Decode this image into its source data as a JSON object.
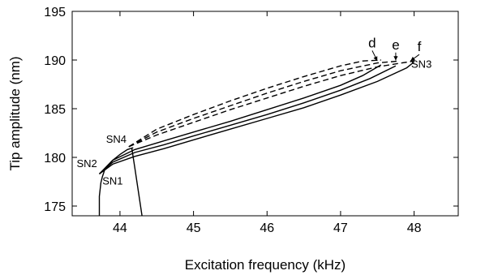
{
  "chart_data": {
    "type": "line",
    "title": "",
    "xlabel": "Excitation frequency (kHz)",
    "ylabel": "Tip amplitude (nm)",
    "xlim": [
      43.35,
      48.6
    ],
    "ylim": [
      174,
      195
    ],
    "x_ticks": [
      44,
      45,
      46,
      47,
      48
    ],
    "y_ticks": [
      175,
      180,
      185,
      190,
      195
    ],
    "grid": false,
    "legend": "none",
    "series": [
      {
        "style": "solid",
        "x": [
          43.72,
          43.9,
          44.2,
          44.6,
          45.0,
          45.5,
          46.0,
          46.5,
          47.0,
          47.5,
          47.9,
          48.0
        ],
        "y": [
          178.3,
          179.3,
          180.1,
          180.9,
          181.8,
          182.9,
          184.0,
          185.1,
          186.4,
          187.8,
          189.2,
          189.8
        ]
      },
      {
        "style": "solid",
        "x": [
          43.72,
          43.9,
          44.2,
          44.6,
          45.0,
          45.5,
          46.0,
          46.5,
          47.0,
          47.4,
          47.75
        ],
        "y": [
          178.3,
          179.5,
          180.5,
          181.3,
          182.2,
          183.3,
          184.4,
          185.6,
          186.9,
          188.1,
          189.4
        ]
      },
      {
        "style": "solid",
        "x": [
          43.72,
          43.9,
          44.2,
          44.6,
          45.0,
          45.5,
          46.0,
          46.5,
          47.0,
          47.3,
          47.55
        ],
        "y": [
          178.3,
          179.7,
          180.8,
          181.7,
          182.6,
          183.7,
          184.9,
          186.1,
          187.4,
          188.4,
          189.5
        ]
      },
      {
        "style": "dashed",
        "x": [
          44.12,
          44.5,
          45.0,
          45.5,
          46.0,
          46.5,
          47.0,
          47.5,
          48.0
        ],
        "y": [
          181.1,
          182.3,
          183.6,
          184.9,
          186.1,
          187.3,
          188.4,
          189.3,
          189.9
        ]
      },
      {
        "style": "dashed",
        "x": [
          44.12,
          44.5,
          45.0,
          45.5,
          46.0,
          46.5,
          47.0,
          47.5,
          47.8
        ],
        "y": [
          181.1,
          182.6,
          184.0,
          185.3,
          186.6,
          187.8,
          188.9,
          189.7,
          189.9
        ]
      },
      {
        "style": "dashed",
        "x": [
          44.12,
          44.5,
          45.0,
          45.5,
          46.0,
          46.5,
          47.0,
          47.3,
          47.55
        ],
        "y": [
          181.1,
          182.9,
          184.4,
          185.8,
          187.1,
          188.3,
          189.4,
          189.9,
          190.0
        ]
      },
      {
        "style": "solid",
        "x": [
          43.72,
          43.72,
          43.74,
          43.76,
          43.8,
          43.9,
          44.0,
          44.1,
          44.18
        ],
        "y": [
          174.0,
          176.0,
          177.4,
          178.0,
          178.9,
          179.7,
          180.3,
          180.8,
          181.0
        ]
      },
      {
        "style": "solid",
        "x": [
          44.16,
          44.2,
          44.24,
          44.28,
          44.3
        ],
        "y": [
          181.0,
          179.0,
          177.0,
          175.0,
          174.0
        ]
      }
    ],
    "annotations": [
      {
        "text": "SN1",
        "x": 43.9,
        "y": 177.2
      },
      {
        "text": "SN2",
        "x": 43.55,
        "y": 179.0
      },
      {
        "text": "SN3",
        "x": 48.1,
        "y": 189.2
      },
      {
        "text": "SN4",
        "x": 43.95,
        "y": 181.5
      },
      {
        "text": "d",
        "x": 47.43,
        "y": 191.3,
        "arrow_to": [
          47.5,
          189.9
        ]
      },
      {
        "text": "e",
        "x": 47.75,
        "y": 191.1,
        "arrow_to": [
          47.75,
          189.95
        ]
      },
      {
        "text": "f",
        "x": 48.07,
        "y": 190.9,
        "arrow_to": [
          47.95,
          189.9
        ]
      }
    ]
  }
}
